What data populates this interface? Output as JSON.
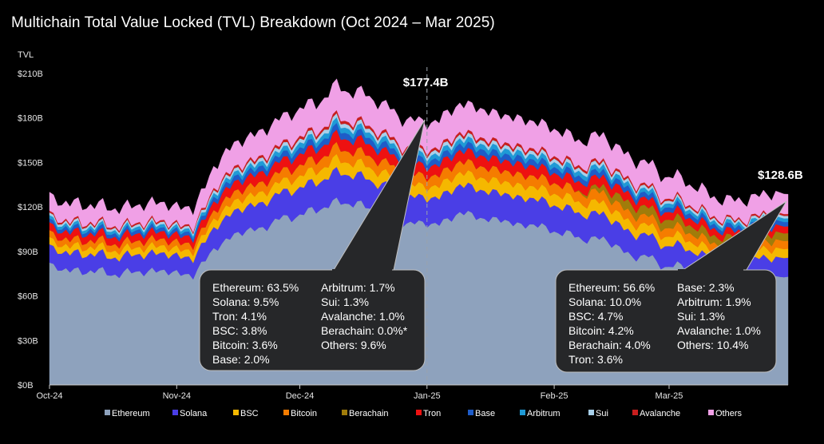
{
  "title": "Multichain Total Value Locked (TVL) Breakdown (Oct 2024 – Mar 2025)",
  "chart_data": {
    "type": "area",
    "stacked": true,
    "ylabel": "TVL",
    "ylim": [
      0,
      210
    ],
    "y_unit": "$B",
    "y_ticks": [
      "$0B",
      "$30B",
      "$60B",
      "$90B",
      "$120B",
      "$150B",
      "$180B",
      "$210B"
    ],
    "y_tick_values": [
      0,
      30,
      60,
      90,
      120,
      150,
      180,
      210
    ],
    "x_ticks": [
      "Oct-24",
      "Nov-24",
      "Dec-24",
      "Jan-25",
      "Feb-25",
      "Mar-25"
    ],
    "x_tick_values": [
      0,
      31,
      61,
      92,
      123,
      151
    ],
    "x_range": [
      0,
      180
    ],
    "x_unit": "days since 2024-10-01",
    "total_key_x": [
      0,
      5,
      10,
      15,
      20,
      25,
      30,
      35,
      40,
      45,
      50,
      55,
      60,
      65,
      70,
      75,
      80,
      85,
      90,
      95,
      100,
      105,
      110,
      115,
      120,
      125,
      130,
      135,
      140,
      145,
      150,
      155,
      160,
      165,
      170,
      175,
      180
    ],
    "total_key_y": [
      130,
      121,
      122,
      119,
      120,
      123,
      121,
      118,
      146,
      163,
      168,
      177,
      185,
      190,
      201,
      197,
      192,
      181,
      177,
      178,
      190,
      186,
      182,
      179,
      176,
      170,
      164,
      169,
      155,
      150,
      141,
      138,
      129,
      124,
      125,
      129,
      128.6
    ],
    "share_start": {
      "Ethereum": 63.5,
      "Solana": 9.5,
      "BSC": 3.8,
      "Bitcoin": 3.6,
      "Berachain": 0.0,
      "Tron": 4.1,
      "Base": 2.0,
      "Arbitrum": 1.7,
      "Sui": 1.3,
      "Avalanche": 1.0,
      "Others": 9.6
    },
    "share_end": {
      "Ethereum": 56.6,
      "Solana": 10.0,
      "BSC": 4.7,
      "Bitcoin": 4.2,
      "Berachain": 4.0,
      "Tron": 3.6,
      "Base": 2.3,
      "Arbitrum": 1.9,
      "Sui": 1.3,
      "Avalanche": 1.0,
      "Others": 10.4
    },
    "series": [
      {
        "name": "Ethereum",
        "color": "#8ea2bd"
      },
      {
        "name": "Solana",
        "color": "#4a3ee6"
      },
      {
        "name": "BSC",
        "color": "#f5b800"
      },
      {
        "name": "Bitcoin",
        "color": "#f57c00"
      },
      {
        "name": "Berachain",
        "color": "#a07c0a"
      },
      {
        "name": "Tron",
        "color": "#ee1111"
      },
      {
        "name": "Base",
        "color": "#1e5cc8"
      },
      {
        "name": "Arbitrum",
        "color": "#1f9ad6"
      },
      {
        "name": "Sui",
        "color": "#a8d0ea"
      },
      {
        "name": "Avalanche",
        "color": "#c81e1e"
      },
      {
        "name": "Others",
        "color": "#f0a0e6"
      }
    ],
    "annotations": [
      {
        "label": "$177.4B",
        "x": 92,
        "value": 177.4
      },
      {
        "label": "$128.6B",
        "x": 180,
        "value": 128.6
      }
    ],
    "callouts": [
      {
        "target_x": 92,
        "col1": [
          "Ethereum: 63.5%",
          "Solana: 9.5%",
          "Tron: 4.1%",
          "BSC: 3.8%",
          "Bitcoin: 3.6%",
          "Base: 2.0%"
        ],
        "col2": [
          "Arbitrum: 1.7%",
          "Sui: 1.3%",
          "Avalanche: 1.0%",
          "Berachain: 0.0%*",
          "Others: 9.6%"
        ]
      },
      {
        "target_x": 180,
        "col1": [
          "Ethereum: 56.6%",
          "Solana: 10.0%",
          "BSC: 4.7%",
          "Bitcoin: 4.2%",
          "Berachain: 4.0%",
          "Tron: 3.6%"
        ],
        "col2": [
          "Base: 2.3%",
          "Arbitrum: 1.9%",
          "Sui: 1.3%",
          "Avalanche: 1.0%",
          "Others: 10.4%"
        ]
      }
    ]
  }
}
